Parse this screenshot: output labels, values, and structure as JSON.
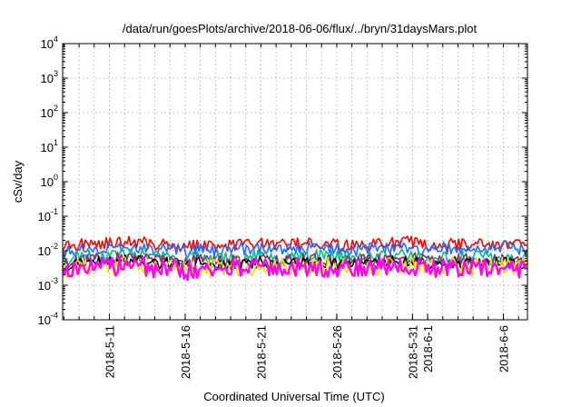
{
  "chart_data": {
    "type": "line",
    "title": "/data/run/goesPlots/archive/2018-06-06/flux/../bryn/31daysMars.plot",
    "xlabel": "Coordinated Universal Time (UTC)",
    "ylabel": "cSv/day",
    "y_scale": "log",
    "ylim": [
      0.0001,
      10000
    ],
    "xlim": [
      "2018-05-07T22:00",
      "2018-06-07T14:00"
    ],
    "y_ticks": [
      {
        "base": "10",
        "exp": "-4",
        "value": 0.0001
      },
      {
        "base": "10",
        "exp": "-3",
        "value": 0.001
      },
      {
        "base": "10",
        "exp": "-2",
        "value": 0.01
      },
      {
        "base": "10",
        "exp": "-1",
        "value": 0.1
      },
      {
        "base": "10",
        "exp": "0",
        "value": 1
      },
      {
        "base": "10",
        "exp": "1",
        "value": 10
      },
      {
        "base": "10",
        "exp": "2",
        "value": 100
      },
      {
        "base": "10",
        "exp": "3",
        "value": 1000
      },
      {
        "base": "10",
        "exp": "4",
        "value": 10000
      }
    ],
    "x_ticks": [
      {
        "label": "2018-5-11",
        "date": "2018-05-11"
      },
      {
        "label": "2018-5-16",
        "date": "2018-05-16"
      },
      {
        "label": "2018-5-21",
        "date": "2018-05-21"
      },
      {
        "label": "2018-5-26",
        "date": "2018-05-26"
      },
      {
        "label": "2018-5-31",
        "date": "2018-05-31"
      },
      {
        "label": "2018-6-1",
        "date": "2018-06-01"
      },
      {
        "label": "2018-6-6",
        "date": "2018-06-06"
      }
    ],
    "grid": true,
    "legend": "none",
    "series": [
      {
        "color": "#ff0000",
        "values": [
          0.013,
          0.015,
          0.017,
          0.016,
          0.019,
          0.018,
          0.015,
          0.016,
          0.013,
          0.015,
          0.014,
          0.014,
          0.015,
          0.016,
          0.014,
          0.015,
          0.017,
          0.016,
          0.015,
          0.014,
          0.015,
          0.016,
          0.017,
          0.018,
          0.014,
          0.016,
          0.016,
          0.015,
          0.015,
          0.017,
          0.015,
          0.018
        ]
      },
      {
        "color": "#1e6fff",
        "values": [
          0.009,
          0.011,
          0.012,
          0.012,
          0.014,
          0.013,
          0.011,
          0.012,
          0.009,
          0.011,
          0.01,
          0.011,
          0.011,
          0.012,
          0.01,
          0.011,
          0.013,
          0.012,
          0.011,
          0.01,
          0.011,
          0.012,
          0.013,
          0.013,
          0.01,
          0.012,
          0.012,
          0.011,
          0.011,
          0.013,
          0.011,
          0.013
        ]
      },
      {
        "color": "#00c08a",
        "values": [
          0.0055,
          0.0065,
          0.0072,
          0.007,
          0.0082,
          0.0078,
          0.0066,
          0.007,
          0.0056,
          0.0066,
          0.006,
          0.0064,
          0.0066,
          0.007,
          0.006,
          0.0066,
          0.0076,
          0.007,
          0.0066,
          0.006,
          0.0066,
          0.007,
          0.0076,
          0.0078,
          0.006,
          0.007,
          0.007,
          0.0066,
          0.0066,
          0.0076,
          0.0066,
          0.0078
        ]
      },
      {
        "color": "#9a2a6a",
        "values": [
          0.0045,
          0.0052,
          0.0058,
          0.0056,
          0.0066,
          0.0062,
          0.0053,
          0.0056,
          0.0045,
          0.0053,
          0.0048,
          0.0051,
          0.0053,
          0.0056,
          0.0048,
          0.0053,
          0.006,
          0.0056,
          0.0053,
          0.0048,
          0.0053,
          0.0056,
          0.006,
          0.0062,
          0.0048,
          0.0056,
          0.0056,
          0.0053,
          0.0053,
          0.006,
          0.0053,
          0.0062
        ]
      },
      {
        "color": "#000000",
        "values": [
          0.0036,
          0.0042,
          0.0046,
          0.0045,
          0.0052,
          0.005,
          0.0042,
          0.0045,
          0.0036,
          0.0042,
          0.0038,
          0.0041,
          0.0042,
          0.0045,
          0.0038,
          0.0042,
          0.0048,
          0.0045,
          0.0042,
          0.0038,
          0.0042,
          0.0045,
          0.0048,
          0.005,
          0.0038,
          0.0045,
          0.0045,
          0.0042,
          0.0042,
          0.0048,
          0.0042,
          0.005
        ]
      },
      {
        "color": "#e8e000",
        "values": [
          0.0028,
          0.0033,
          0.0037,
          0.0036,
          0.0042,
          0.004,
          0.0034,
          0.0036,
          0.0029,
          0.0034,
          0.0031,
          0.0033,
          0.0034,
          0.0036,
          0.0031,
          0.0034,
          0.0039,
          0.0036,
          0.0034,
          0.0031,
          0.0034,
          0.0036,
          0.0039,
          0.004,
          0.0031,
          0.0036,
          0.0036,
          0.0034,
          0.0034,
          0.0039,
          0.0034,
          0.004
        ]
      },
      {
        "color": "#ff00ff",
        "values": [
          0.0026,
          0.003,
          0.0034,
          0.0033,
          0.0039,
          0.0036,
          0.0031,
          0.0033,
          0.0026,
          0.0031,
          0.0028,
          0.003,
          0.0031,
          0.0033,
          0.0028,
          0.0031,
          0.0035,
          0.0033,
          0.0031,
          0.0028,
          0.0031,
          0.0033,
          0.0035,
          0.0036,
          0.0028,
          0.0033,
          0.0033,
          0.0031,
          0.0031,
          0.0035,
          0.0031,
          0.0036
        ]
      }
    ]
  }
}
